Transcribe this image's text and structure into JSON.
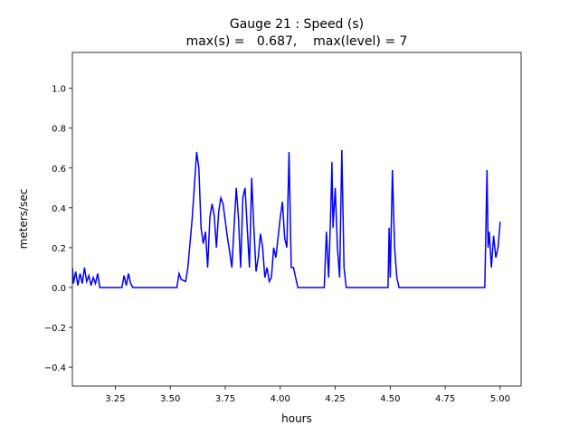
{
  "chart_data": {
    "type": "line",
    "title": "Gauge 21 : Speed (s)",
    "subtitle": "max(s) =   0.687,    max(level) = 7",
    "xlabel": "hours",
    "ylabel": "meters/sec",
    "xlim": [
      3.055,
      5.095
    ],
    "ylim": [
      -0.495,
      1.18
    ],
    "xticks": [
      3.25,
      {
        "value": 3.5,
        "label": "3.50"
      },
      3.75,
      {
        "value": 4,
        "label": "4.00"
      },
      4.25,
      {
        "value": 4.5,
        "label": "4.50"
      },
      4.75,
      {
        "value": 5,
        "label": "5.00"
      }
    ],
    "yticks": [
      {
        "value": -0.4,
        "label": "−0.4"
      },
      {
        "value": -0.2,
        "label": "−0.2"
      },
      {
        "value": 0,
        "label": "0.0"
      },
      0.2,
      0.4,
      0.6,
      0.8,
      {
        "value": 1,
        "label": "1.0"
      }
    ],
    "x": [
      3.055,
      3.06,
      3.07,
      3.08,
      3.09,
      3.1,
      3.11,
      3.12,
      3.13,
      3.14,
      3.15,
      3.16,
      3.17,
      3.18,
      3.28,
      3.29,
      3.3,
      3.31,
      3.32,
      3.33,
      3.53,
      3.54,
      3.55,
      3.57,
      3.58,
      3.6,
      3.62,
      3.63,
      3.64,
      3.65,
      3.66,
      3.67,
      3.68,
      3.69,
      3.7,
      3.71,
      3.72,
      3.73,
      3.74,
      3.76,
      3.77,
      3.78,
      3.79,
      3.8,
      3.81,
      3.82,
      3.83,
      3.84,
      3.85,
      3.86,
      3.87,
      3.88,
      3.89,
      3.9,
      3.91,
      3.92,
      3.93,
      3.94,
      3.95,
      3.96,
      3.97,
      3.98,
      4.0,
      4.01,
      4.02,
      4.03,
      4.04,
      4.05,
      4.06,
      4.07,
      4.08,
      4.2,
      4.21,
      4.22,
      4.23,
      4.235,
      4.24,
      4.25,
      4.26,
      4.27,
      4.28,
      4.29,
      4.3,
      4.49,
      4.495,
      4.5,
      4.51,
      4.52,
      4.53,
      4.54,
      4.93,
      4.94,
      4.945,
      4.95,
      4.96,
      4.97,
      4.98,
      4.99,
      5.0
    ],
    "series": [
      {
        "name": "speed",
        "color": "#0000ff",
        "values": [
          0.1,
          0.02,
          0.08,
          0.01,
          0.07,
          0.02,
          0.1,
          0.03,
          0.06,
          0.01,
          0.05,
          0.02,
          0.07,
          0.0,
          0.0,
          0.06,
          0.01,
          0.07,
          0.02,
          0.0,
          0.0,
          0.07,
          0.04,
          0.03,
          0.1,
          0.35,
          0.68,
          0.6,
          0.3,
          0.22,
          0.28,
          0.1,
          0.35,
          0.42,
          0.36,
          0.2,
          0.38,
          0.45,
          0.42,
          0.25,
          0.18,
          0.1,
          0.3,
          0.5,
          0.35,
          0.1,
          0.45,
          0.5,
          0.3,
          0.1,
          0.55,
          0.3,
          0.08,
          0.15,
          0.27,
          0.2,
          0.05,
          0.1,
          0.03,
          0.05,
          0.2,
          0.15,
          0.35,
          0.43,
          0.25,
          0.2,
          0.68,
          0.1,
          0.1,
          0.05,
          0.0,
          0.0,
          0.28,
          0.05,
          0.4,
          0.63,
          0.3,
          0.5,
          0.2,
          0.05,
          0.69,
          0.1,
          0.0,
          0.0,
          0.3,
          0.05,
          0.59,
          0.2,
          0.05,
          0.0,
          0.0,
          0.59,
          0.2,
          0.28,
          0.1,
          0.26,
          0.15,
          0.2,
          0.33
        ]
      }
    ]
  }
}
